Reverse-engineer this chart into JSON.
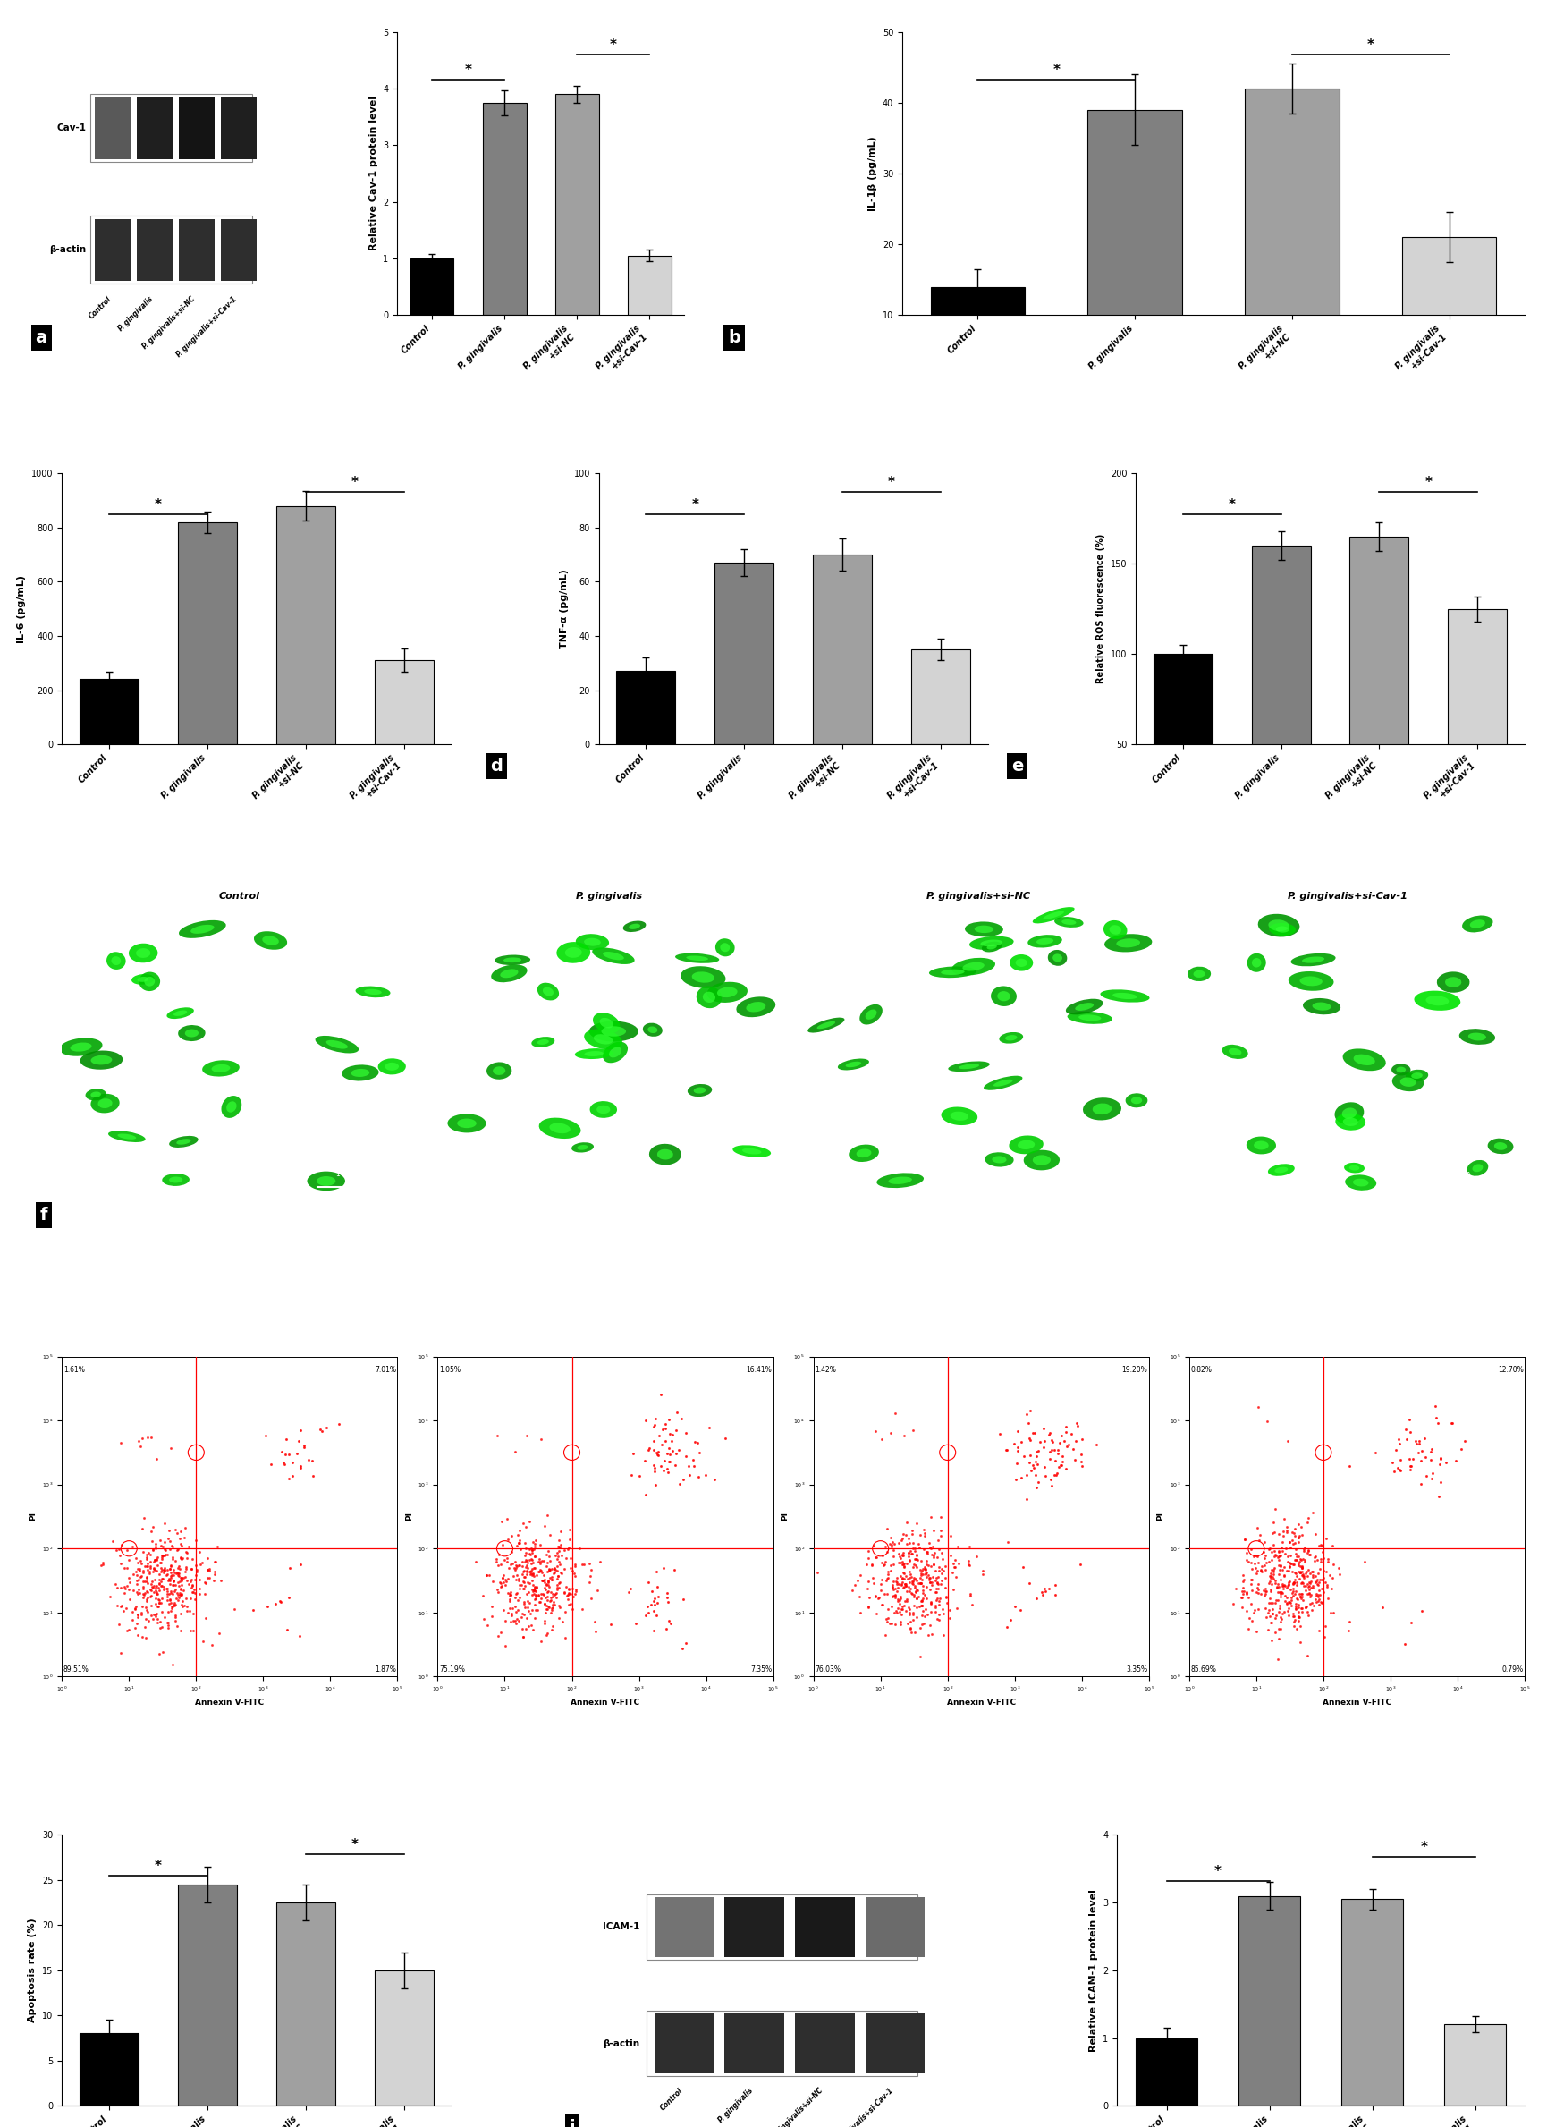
{
  "categories": [
    "Control",
    "P. gingivalis",
    "P. gingivalis+si-NC",
    "P. gingivalis+si-Cav-1"
  ],
  "bar_colors": [
    "#000000",
    "#808080",
    "#a0a0a0",
    "#d3d3d3"
  ],
  "cav1_values": [
    1.0,
    3.75,
    3.9,
    1.05
  ],
  "cav1_errors": [
    0.08,
    0.22,
    0.15,
    0.1
  ],
  "cav1_ylim": [
    0,
    5
  ],
  "cav1_yticks": [
    0,
    1,
    2,
    3,
    4,
    5
  ],
  "cav1_ylabel": "Relative Cav-1 protein level",
  "il1b_values": [
    14.0,
    39.0,
    42.0,
    21.0
  ],
  "il1b_errors": [
    2.5,
    5.0,
    3.5,
    3.5
  ],
  "il1b_ylim": [
    10,
    50
  ],
  "il1b_yticks": [
    10,
    20,
    30,
    40,
    50
  ],
  "il1b_ylabel": "IL-1β (pg/mL)",
  "il6_values": [
    240,
    820,
    880,
    310
  ],
  "il6_errors": [
    28,
    40,
    55,
    42
  ],
  "il6_ylim": [
    0,
    1000
  ],
  "il6_yticks": [
    0,
    200,
    400,
    600,
    800,
    1000
  ],
  "il6_ylabel": "IL-6 (pg/mL)",
  "tnfa_values": [
    27,
    67,
    70,
    35
  ],
  "tnfa_errors": [
    5,
    5,
    6,
    4
  ],
  "tnfa_ylim": [
    0,
    100
  ],
  "tnfa_yticks": [
    0,
    20,
    40,
    60,
    80,
    100
  ],
  "tnfa_ylabel": "TNF-α (pg/mL)",
  "ros_values": [
    100,
    160,
    165,
    125
  ],
  "ros_errors": [
    5,
    8,
    8,
    7
  ],
  "ros_ylim": [
    50,
    200
  ],
  "ros_yticks": [
    50,
    100,
    150,
    200
  ],
  "ros_ylabel": "Relative ROS fluorescence (%)",
  "apoptosis_values": [
    8.0,
    24.5,
    22.5,
    15.0
  ],
  "apoptosis_errors": [
    1.5,
    2.0,
    2.0,
    2.0
  ],
  "apoptosis_ylim": [
    0,
    30
  ],
  "apoptosis_yticks": [
    0,
    5,
    10,
    15,
    20,
    25,
    30
  ],
  "apoptosis_ylabel": "Apoptosis rate (%)",
  "icam1_values": [
    1.0,
    3.1,
    3.05,
    1.2
  ],
  "icam1_errors": [
    0.15,
    0.2,
    0.15,
    0.12
  ],
  "icam1_ylim": [
    0,
    4
  ],
  "icam1_yticks": [
    0,
    1,
    2,
    3,
    4
  ],
  "icam1_ylabel": "Relative ICAM-1 protein level",
  "flow_data": {
    "control": {
      "UL": "1.61%",
      "UR": "7.01%",
      "LL": "89.51%",
      "LR": "1.87%"
    },
    "pg": {
      "UL": "1.05%",
      "UR": "16.41%",
      "LL": "75.19%",
      "LR": "7.35%"
    },
    "pg_sinc": {
      "UL": "1.42%",
      "UR": "19.20%",
      "LL": "76.03%",
      "LR": "3.35%"
    },
    "pg_sicav1": {
      "UL": "0.82%",
      "UR": "12.70%",
      "LL": "85.69%",
      "LR": "0.79%"
    }
  },
  "panel_label_fontsize": 14,
  "axis_fontsize": 8,
  "tick_fontsize": 7,
  "background_color": "#ffffff"
}
